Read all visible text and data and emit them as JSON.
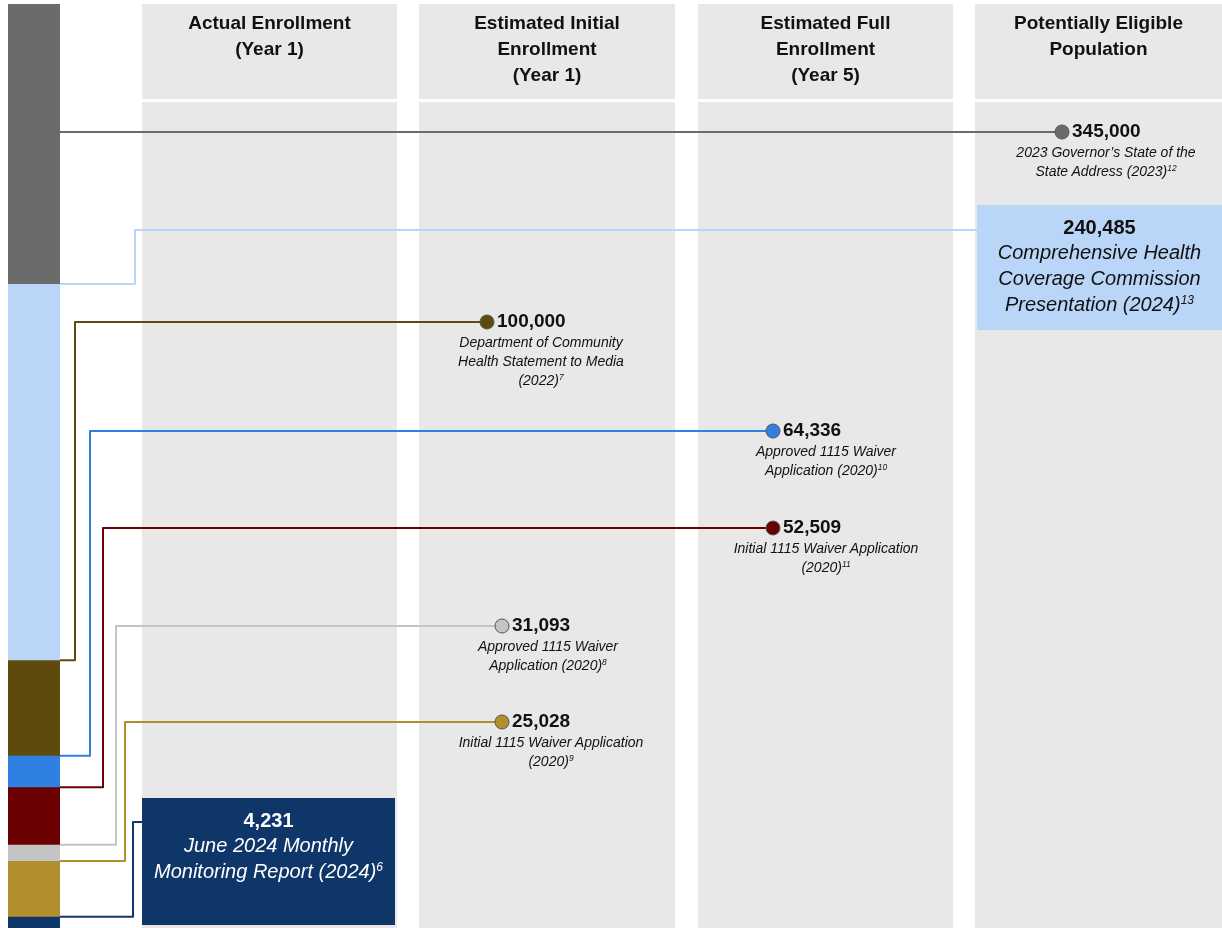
{
  "chart_data": {
    "type": "other",
    "categories": [
      "Actual Enrollment\n(Year 1)",
      "Estimated Initial\nEnrollment\n(Year 1)",
      "Estimated Full\nEnrollment\n(Year 5)",
      "Potentially Eligible\nPopulation"
    ],
    "series": [
      {
        "name": "2023 Governor’s State of the State Address (2023)$^{12}$",
        "color": "#6b6b6b",
        "marker": "circle",
        "values": [
          null,
          null,
          null,
          345000
        ],
        "value_labels": [
          null,
          null,
          null,
          "345,000"
        ]
      },
      {
        "name": "Comprehensive Health Coverage Commission Presentation (2024)$^{13}$",
        "color": "#b9d5f7",
        "marker": "square",
        "values": [
          null,
          null,
          null,
          240485
        ],
        "value_labels": [
          null,
          null,
          null,
          "240,485"
        ]
      },
      {
        "name": "Department of Community Health Statement to Media (2022)$^{7}$",
        "color": "#5e4a0c",
        "marker": "circle",
        "values": [
          null,
          100000,
          null,
          null
        ],
        "value_labels": [
          null,
          "100,000",
          null,
          null
        ]
      },
      {
        "name": "Approved 1115 Waiver Application (2020)$^{10}$",
        "color": "#2f80e0",
        "marker": "circle",
        "values": [
          null,
          null,
          64336,
          null
        ],
        "value_labels": [
          null,
          null,
          "64,336",
          null
        ]
      },
      {
        "name": "Initial 1115 Waiver Application (2020)$^{11}$",
        "color": "#6b0000",
        "marker": "circle",
        "values": [
          null,
          null,
          52509,
          null
        ],
        "value_labels": [
          null,
          null,
          "52,509",
          null
        ]
      },
      {
        "name": "Approved 1115 Waiver Application (2020)$^{8}$",
        "color": "#c4c4c4",
        "marker": "circle",
        "values": [
          null,
          31093,
          null,
          null
        ],
        "value_labels": [
          null,
          "31,093",
          null,
          null
        ]
      },
      {
        "name": "Initial 1115 Waiver Application (2020)$^{9}$",
        "color": "#b08f2c",
        "marker": "circle",
        "values": [
          null,
          25028,
          null,
          null
        ],
        "value_labels": [
          null,
          "25,028",
          null,
          null
        ]
      },
      {
        "name": "June 2024 Monthly Monitoring Report (2024)$^{6}$",
        "color": "#0f3668",
        "marker": "square",
        "values": [
          4231,
          null,
          null,
          null
        ],
        "value_labels": [
          "4,231",
          null,
          null,
          null
        ]
      }
    ]
  }
}
